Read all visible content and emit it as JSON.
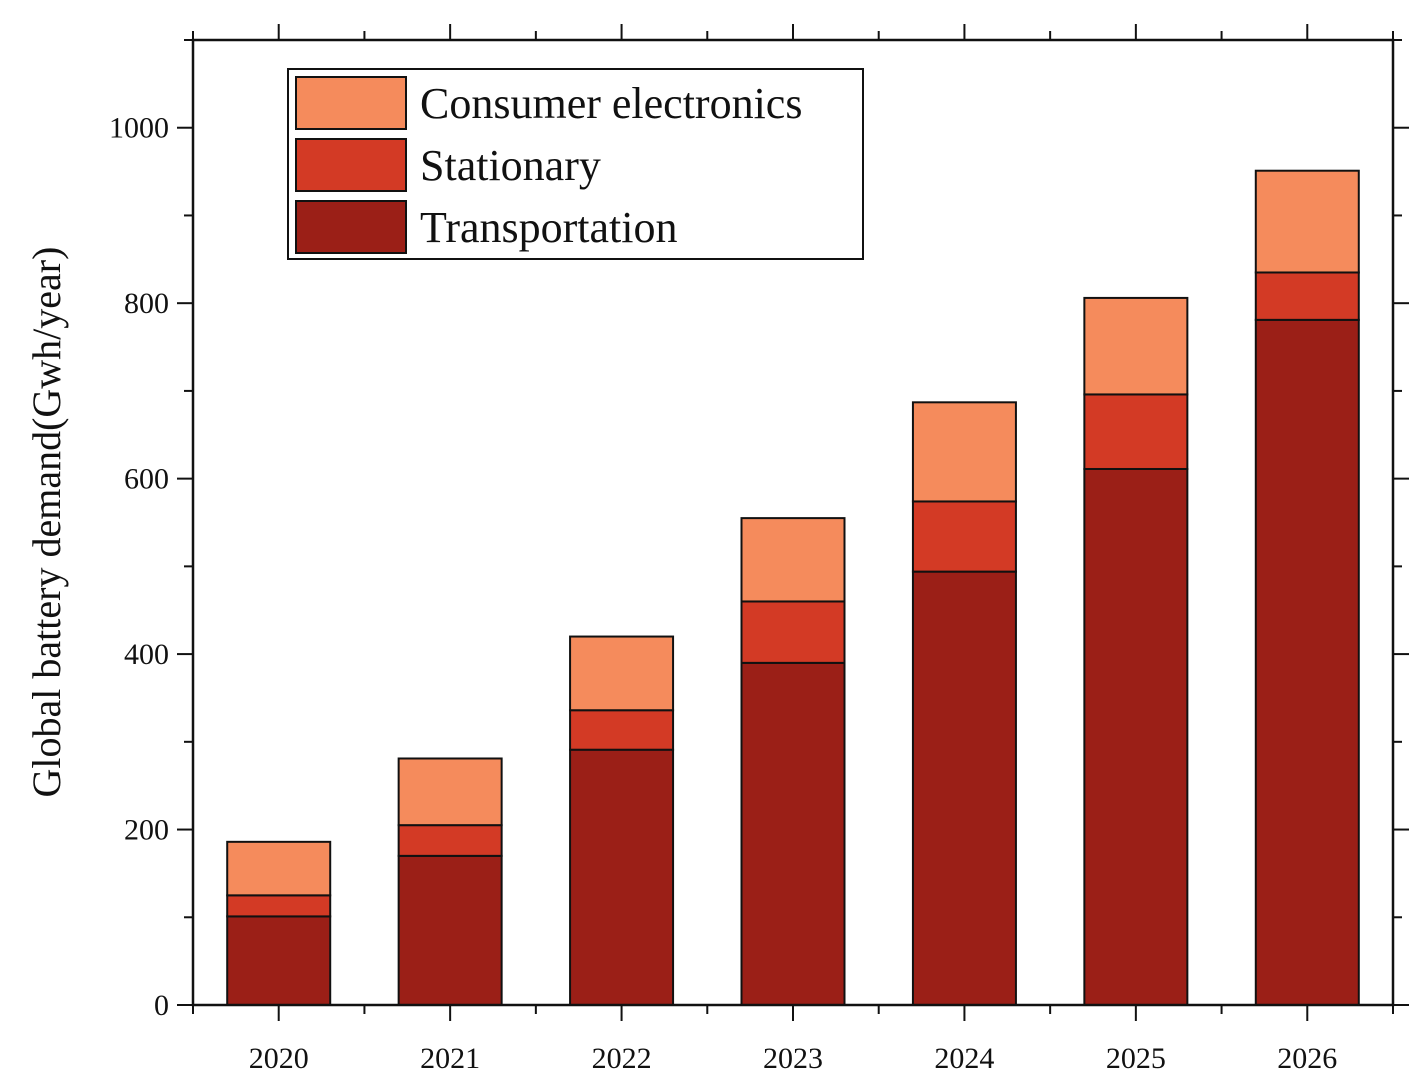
{
  "chart_data": {
    "type": "bar",
    "stacked": true,
    "title": "",
    "xlabel": "",
    "ylabel": "Global battery demand(Gwh/year)",
    "ylim": [
      0,
      1100
    ],
    "yticks": [
      0,
      200,
      400,
      600,
      800,
      1000
    ],
    "legend_position": "top-left",
    "categories": [
      "2020",
      "2021",
      "2022",
      "2023",
      "2024",
      "2025",
      "2026"
    ],
    "series": [
      {
        "name": "Transportation",
        "color": "#9b1f17",
        "values": [
          101,
          170,
          291,
          390,
          494,
          611,
          781
        ]
      },
      {
        "name": "Stationary",
        "color": "#d33a25",
        "values": [
          24,
          35,
          45,
          70,
          80,
          85,
          54
        ]
      },
      {
        "name": "Consumer electronics",
        "color": "#f58b5c",
        "values": [
          61,
          76,
          84,
          95,
          113,
          110,
          116
        ]
      }
    ],
    "legend": [
      "Consumer electronics",
      "Stationary",
      "Transportation"
    ]
  }
}
